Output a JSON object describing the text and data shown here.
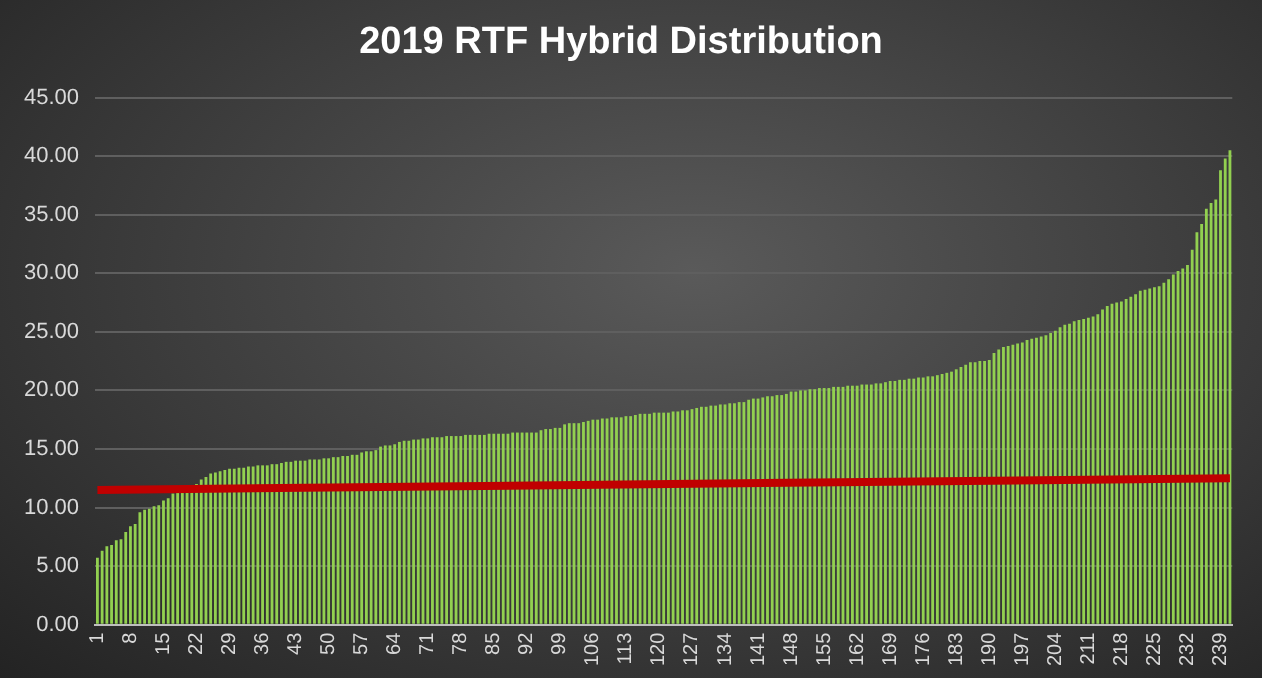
{
  "chart_data": {
    "type": "bar",
    "title": "2019 RTF Hybrid Distribution",
    "categories": [
      "1",
      null,
      null,
      null,
      null,
      null,
      null,
      "8",
      null,
      null,
      null,
      null,
      null,
      null,
      "15",
      null,
      null,
      null,
      null,
      null,
      null,
      "22",
      null,
      null,
      null,
      null,
      null,
      null,
      "29",
      null,
      null,
      null,
      null,
      null,
      null,
      "36",
      null,
      null,
      null,
      null,
      null,
      null,
      "43",
      null,
      null,
      null,
      null,
      null,
      null,
      "50",
      null,
      null,
      null,
      null,
      null,
      null,
      "57",
      null,
      null,
      null,
      null,
      null,
      null,
      "64",
      null,
      null,
      null,
      null,
      null,
      null,
      "71",
      null,
      null,
      null,
      null,
      null,
      null,
      "78",
      null,
      null,
      null,
      null,
      null,
      null,
      "85",
      null,
      null,
      null,
      null,
      null,
      null,
      "92",
      null,
      null,
      null,
      null,
      null,
      null,
      "99",
      null,
      null,
      null,
      null,
      null,
      null,
      "106",
      null,
      null,
      null,
      null,
      null,
      null,
      "113",
      null,
      null,
      null,
      null,
      null,
      null,
      "120",
      null,
      null,
      null,
      null,
      null,
      null,
      "127",
      null,
      null,
      null,
      null,
      null,
      null,
      "134",
      null,
      null,
      null,
      null,
      null,
      null,
      "141",
      null,
      null,
      null,
      null,
      null,
      null,
      "148",
      null,
      null,
      null,
      null,
      null,
      null,
      "155",
      null,
      null,
      null,
      null,
      null,
      null,
      "162",
      null,
      null,
      null,
      null,
      null,
      null,
      "169",
      null,
      null,
      null,
      null,
      null,
      null,
      "176",
      null,
      null,
      null,
      null,
      null,
      null,
      "183",
      null,
      null,
      null,
      null,
      null,
      null,
      "190",
      null,
      null,
      null,
      null,
      null,
      null,
      "197",
      null,
      null,
      null,
      null,
      null,
      null,
      "204",
      null,
      null,
      null,
      null,
      null,
      null,
      "211",
      null,
      null,
      null,
      null,
      null,
      null,
      "218",
      null,
      null,
      null,
      null,
      null,
      null,
      "225",
      null,
      null,
      null,
      null,
      null,
      null,
      "232",
      null,
      null,
      null,
      null,
      null,
      null,
      "239",
      null,
      null
    ],
    "series": [
      {
        "color": "#92d050",
        "values": [
          5.7,
          6.3,
          6.7,
          6.8,
          7.2,
          7.3,
          7.9,
          8.4,
          8.6,
          9.6,
          9.8,
          9.9,
          10.1,
          10.2,
          10.6,
          10.8,
          11.2,
          11.4,
          11.5,
          11.6,
          11.7,
          12.0,
          12.4,
          12.6,
          12.9,
          13.0,
          13.1,
          13.2,
          13.3,
          13.3,
          13.4,
          13.4,
          13.5,
          13.5,
          13.6,
          13.6,
          13.6,
          13.7,
          13.7,
          13.8,
          13.9,
          13.9,
          14.0,
          14.0,
          14.0,
          14.1,
          14.1,
          14.1,
          14.2,
          14.2,
          14.3,
          14.3,
          14.4,
          14.4,
          14.5,
          14.5,
          14.7,
          14.8,
          14.8,
          14.9,
          15.2,
          15.3,
          15.3,
          15.4,
          15.6,
          15.7,
          15.7,
          15.8,
          15.8,
          15.9,
          15.9,
          16.0,
          16.0,
          16.0,
          16.1,
          16.1,
          16.1,
          16.1,
          16.2,
          16.2,
          16.2,
          16.2,
          16.2,
          16.3,
          16.3,
          16.3,
          16.3,
          16.3,
          16.4,
          16.4,
          16.4,
          16.4,
          16.4,
          16.4,
          16.6,
          16.7,
          16.7,
          16.8,
          16.8,
          17.1,
          17.2,
          17.2,
          17.2,
          17.3,
          17.4,
          17.5,
          17.5,
          17.6,
          17.6,
          17.7,
          17.7,
          17.7,
          17.8,
          17.8,
          17.9,
          18.0,
          18.0,
          18.0,
          18.1,
          18.1,
          18.1,
          18.1,
          18.2,
          18.2,
          18.3,
          18.3,
          18.4,
          18.5,
          18.6,
          18.6,
          18.7,
          18.7,
          18.8,
          18.8,
          18.9,
          18.9,
          19.0,
          19.0,
          19.2,
          19.3,
          19.3,
          19.4,
          19.5,
          19.5,
          19.6,
          19.6,
          19.7,
          19.9,
          19.9,
          20.0,
          20.0,
          20.1,
          20.1,
          20.2,
          20.2,
          20.2,
          20.3,
          20.3,
          20.3,
          20.4,
          20.4,
          20.4,
          20.5,
          20.5,
          20.5,
          20.6,
          20.6,
          20.7,
          20.8,
          20.8,
          20.9,
          20.9,
          21.0,
          21.0,
          21.1,
          21.1,
          21.2,
          21.2,
          21.3,
          21.4,
          21.5,
          21.6,
          21.8,
          22.0,
          22.2,
          22.4,
          22.4,
          22.5,
          22.5,
          22.6,
          23.2,
          23.5,
          23.7,
          23.8,
          23.9,
          24.0,
          24.1,
          24.3,
          24.4,
          24.5,
          24.6,
          24.7,
          24.9,
          25.1,
          25.4,
          25.6,
          25.7,
          25.9,
          26.0,
          26.1,
          26.2,
          26.3,
          26.5,
          26.9,
          27.2,
          27.4,
          27.5,
          27.6,
          27.8,
          28.0,
          28.2,
          28.5,
          28.6,
          28.7,
          28.8,
          28.9,
          29.2,
          29.5,
          29.9,
          30.2,
          30.4,
          30.7,
          32.0,
          33.5,
          34.2,
          35.5,
          36.0,
          36.3,
          38.8,
          39.8,
          40.5
        ]
      },
      {
        "type": "line",
        "color": "#c00000",
        "values": [
          11.5,
          null,
          null,
          null,
          null,
          null,
          null,
          null,
          null,
          null,
          null,
          null,
          null,
          null,
          null,
          null,
          null,
          null,
          null,
          null,
          null,
          null,
          null,
          null,
          null,
          null,
          null,
          null,
          null,
          null,
          null,
          null,
          null,
          null,
          null,
          null,
          null,
          null,
          null,
          null,
          null,
          null,
          null,
          null,
          null,
          null,
          null,
          null,
          null,
          null,
          null,
          null,
          null,
          null,
          null,
          null,
          null,
          null,
          null,
          null,
          null,
          null,
          null,
          null,
          null,
          null,
          null,
          null,
          null,
          null,
          null,
          null,
          null,
          null,
          null,
          null,
          null,
          null,
          null,
          null,
          null,
          null,
          null,
          null,
          null,
          null,
          null,
          null,
          null,
          null,
          null,
          null,
          null,
          null,
          null,
          null,
          null,
          null,
          null,
          null,
          null,
          null,
          null,
          null,
          null,
          null,
          null,
          null,
          null,
          null,
          null,
          null,
          null,
          null,
          null,
          null,
          null,
          null,
          null,
          null,
          null,
          null,
          null,
          null,
          null,
          null,
          null,
          null,
          null,
          null,
          null,
          null,
          null,
          null,
          null,
          null,
          null,
          null,
          null,
          null,
          null,
          null,
          null,
          null,
          null,
          null,
          null,
          null,
          null,
          null,
          null,
          null,
          null,
          null,
          null,
          null,
          null,
          null,
          null,
          null,
          null,
          null,
          null,
          null,
          null,
          null,
          null,
          null,
          null,
          null,
          null,
          null,
          null,
          null,
          null,
          null,
          null,
          null,
          null,
          null,
          null,
          null,
          null,
          null,
          null,
          null,
          null,
          null,
          null,
          null,
          null,
          null,
          null,
          null,
          null,
          null,
          null,
          null,
          null,
          null,
          null,
          null,
          null,
          null,
          null,
          null,
          null,
          null,
          null,
          null,
          null,
          null,
          null,
          null,
          null,
          null,
          null,
          null,
          null,
          null,
          null,
          null,
          null,
          null,
          null,
          null,
          null,
          null,
          null,
          null,
          null,
          null,
          null,
          null,
          null,
          null,
          null,
          null,
          null,
          null,
          12.5
        ]
      }
    ],
    "ylim": [
      0,
      45
    ],
    "yticks": [
      {
        "value": 0,
        "label": "0.00"
      },
      {
        "value": 5,
        "label": "5.00"
      },
      {
        "value": 10,
        "label": "10.00"
      },
      {
        "value": 15,
        "label": "15.00"
      },
      {
        "value": 20,
        "label": "20.00"
      },
      {
        "value": 25,
        "label": "25.00"
      },
      {
        "value": 30,
        "label": "30.00"
      },
      {
        "value": 35,
        "label": "35.00"
      },
      {
        "value": 40,
        "label": "40.00"
      },
      {
        "value": 45,
        "label": "45.00"
      }
    ],
    "grid": "y",
    "legend": false,
    "marker": "none"
  }
}
